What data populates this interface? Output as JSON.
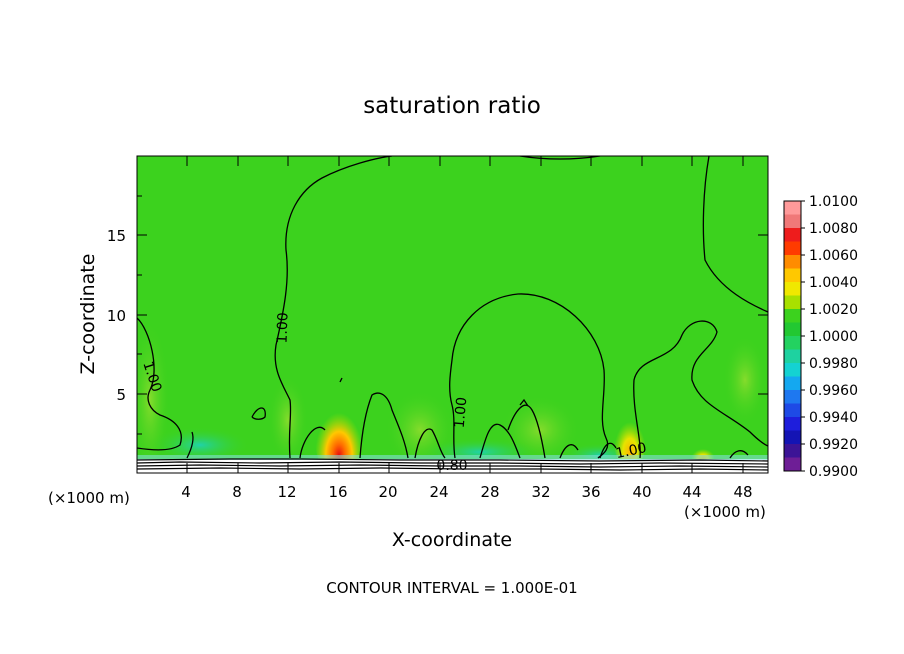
{
  "chart_data": {
    "type": "heatmap",
    "title": "saturation ratio",
    "xlabel": "X-coordinate",
    "ylabel": "Z-coordinate",
    "x_unit": "(×1000 m)",
    "x_unit_right": "(×1000 m)",
    "xlim": [
      0,
      50
    ],
    "ylim": [
      0,
      20
    ],
    "xticks": [
      "4",
      "8",
      "12",
      "16",
      "20",
      "24",
      "28",
      "32",
      "36",
      "40",
      "44",
      "48"
    ],
    "yticks": [
      "5",
      "10",
      "15"
    ],
    "footer": "CONTOUR INTERVAL = 1.000E-01",
    "contour_labels": [
      {
        "text": "1.00",
        "x": 2.0,
        "z": 6.0
      },
      {
        "text": "1.00",
        "x": 11.5,
        "z": 9.0
      },
      {
        "text": "1.00",
        "x": 25.8,
        "z": 2.7
      },
      {
        "text": "1.00",
        "x": 39.5,
        "z": 1.3
      },
      {
        "text": "0.80",
        "x": 24.9,
        "z": 0.5
      }
    ],
    "colorbar": {
      "levels": [
        "1.0100",
        "1.0080",
        "1.0060",
        "1.0040",
        "1.0020",
        "1.0000",
        "0.9980",
        "0.9960",
        "0.9940",
        "0.9920",
        "0.9900"
      ],
      "colors": [
        "#ff9a9a",
        "#f07878",
        "#ee1c1c",
        "#ff3b00",
        "#ff8c00",
        "#ffc800",
        "#f0e800",
        "#a8e000",
        "#3cd21e",
        "#22c832",
        "#23d260",
        "#1ed2a0",
        "#14d2d2",
        "#14a8f0",
        "#1e78f0",
        "#1e4ae6",
        "#1e1edc",
        "#1414b4",
        "#3c1496",
        "#6e1e96"
      ]
    },
    "background_value": 1.0,
    "hotspots": [
      {
        "x": 16.2,
        "z": 1.7,
        "peak": 1.007
      },
      {
        "x": 39.5,
        "z": 1.6,
        "peak": 1.004
      },
      {
        "x": 45.5,
        "z": 1.0,
        "peak": 1.004
      }
    ],
    "grid": false,
    "legend": "colorbar-right"
  }
}
